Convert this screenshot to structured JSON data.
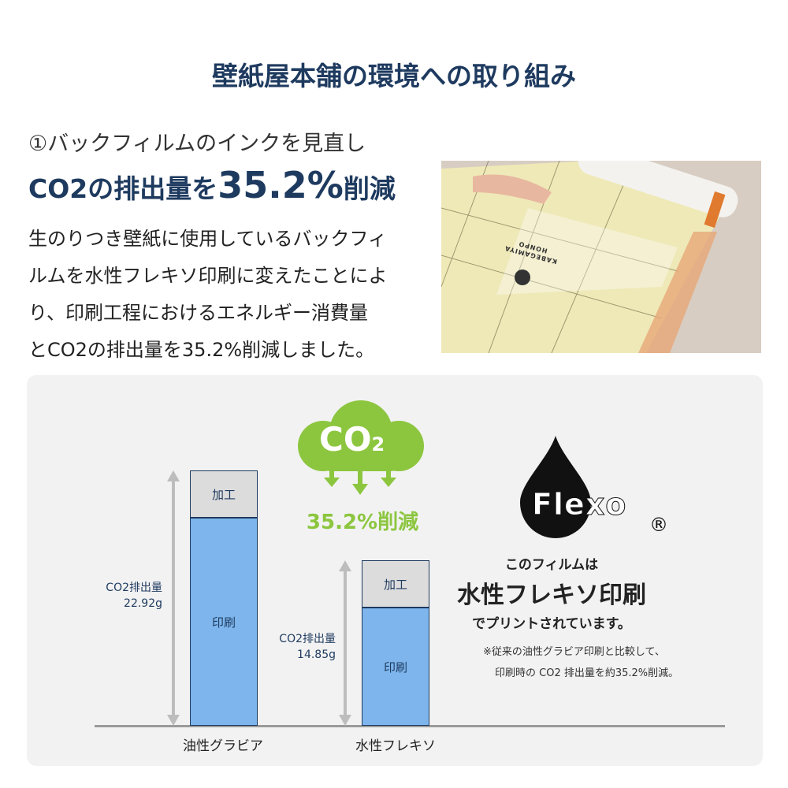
{
  "title": "壁紙屋本舗の環境への取り組み",
  "subtitle": "①バックフィルムのインクを見直し",
  "headline": {
    "pre": "CO2の排出量を",
    "value": "35.2%",
    "post": "削減"
  },
  "body_lines": [
    "生のりつき壁紙に使用しているバックフィ",
    "ルムを水性フレキソ印刷に変えたことによ",
    "り、印刷工程におけるエネルギー消費量",
    "とCO2の排出量を35.2%削減しました。"
  ],
  "photo": {
    "description_text": "KABEGAMIYA HONPO"
  },
  "cloud": {
    "label": "CO",
    "sub": "2",
    "reduction": "35.2%削減",
    "color": "#8cc63f"
  },
  "flexo": {
    "logo": "Flexo",
    "registered": "®",
    "line1": "このフィルムは",
    "line2": "水性フレキソ印刷",
    "line3": "でプリントされています。",
    "note1": "※従来の油性グラビア印刷と比較して、",
    "note2": "印刷時の CO2 排出量を約35.2%削減。"
  },
  "chart_data": {
    "type": "bar",
    "categories": [
      "油性グラビア",
      "水性フレキソ"
    ],
    "total_label": "CO2排出量",
    "totals": [
      22.92,
      14.85
    ],
    "unit": "g",
    "segments": [
      "印刷",
      "加工"
    ],
    "colors": {
      "印刷": "#7db5ec",
      "加工": "#dcdcdc"
    }
  }
}
